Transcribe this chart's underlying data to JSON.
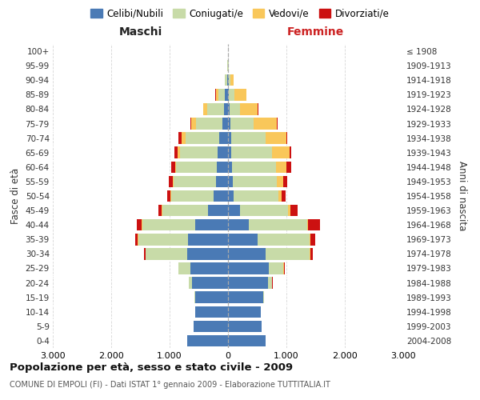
{
  "age_groups": [
    "0-4",
    "5-9",
    "10-14",
    "15-19",
    "20-24",
    "25-29",
    "30-34",
    "35-39",
    "40-44",
    "45-49",
    "50-54",
    "55-59",
    "60-64",
    "65-69",
    "70-74",
    "75-79",
    "80-84",
    "85-89",
    "90-94",
    "95-99",
    "100+"
  ],
  "birth_years": [
    "2004-2008",
    "1999-2003",
    "1994-1998",
    "1989-1993",
    "1984-1988",
    "1979-1983",
    "1974-1978",
    "1969-1973",
    "1964-1968",
    "1959-1963",
    "1954-1958",
    "1949-1953",
    "1944-1948",
    "1939-1943",
    "1934-1938",
    "1929-1933",
    "1924-1928",
    "1919-1923",
    "1914-1918",
    "1909-1913",
    "≤ 1908"
  ],
  "colors": {
    "celibi": "#4a7ab5",
    "coniugati": "#c8dba8",
    "vedovi": "#f9c75a",
    "divorziati": "#cc1111"
  },
  "maschi": {
    "celibi": [
      700,
      590,
      560,
      560,
      610,
      650,
      700,
      680,
      560,
      340,
      240,
      210,
      190,
      175,
      145,
      95,
      75,
      50,
      20,
      5,
      0
    ],
    "coniugati": [
      0,
      0,
      5,
      10,
      55,
      195,
      710,
      860,
      910,
      790,
      730,
      720,
      700,
      650,
      580,
      450,
      285,
      120,
      30,
      5,
      0
    ],
    "vedovi": [
      0,
      0,
      0,
      0,
      0,
      0,
      0,
      5,
      5,
      5,
      10,
      15,
      20,
      40,
      70,
      80,
      60,
      40,
      5,
      0,
      0
    ],
    "divorziati": [
      0,
      0,
      0,
      0,
      5,
      10,
      30,
      50,
      90,
      50,
      60,
      70,
      60,
      50,
      50,
      15,
      10,
      5,
      0,
      0,
      0
    ]
  },
  "femmine": {
    "nubili": [
      650,
      580,
      560,
      600,
      680,
      700,
      650,
      500,
      350,
      200,
      100,
      80,
      70,
      60,
      50,
      40,
      30,
      20,
      10,
      5,
      0
    ],
    "coniugate": [
      0,
      0,
      5,
      15,
      80,
      250,
      750,
      900,
      1000,
      830,
      760,
      760,
      750,
      700,
      600,
      400,
      180,
      90,
      30,
      5,
      0
    ],
    "vedove": [
      0,
      0,
      0,
      0,
      0,
      5,
      5,
      10,
      20,
      40,
      60,
      100,
      180,
      300,
      350,
      400,
      300,
      200,
      50,
      5,
      0
    ],
    "divorziate": [
      0,
      0,
      0,
      0,
      10,
      20,
      50,
      80,
      200,
      120,
      70,
      80,
      80,
      20,
      20,
      10,
      10,
      5,
      0,
      0,
      0
    ]
  },
  "title": "Popolazione per età, sesso e stato civile - 2009",
  "subtitle": "COMUNE DI EMPOLI (FI) - Dati ISTAT 1° gennaio 2009 - Elaborazione TUTTITALIA.IT",
  "xlabel_left": "Maschi",
  "xlabel_right": "Femmine",
  "ylabel_left": "Fasce di età",
  "ylabel_right": "Anni di nascita",
  "xlim": 3000,
  "legend_labels": [
    "Celibi/Nubili",
    "Coniugati/e",
    "Vedovi/e",
    "Divorziati/e"
  ],
  "background_color": "#ffffff",
  "grid_color": "#cccccc"
}
